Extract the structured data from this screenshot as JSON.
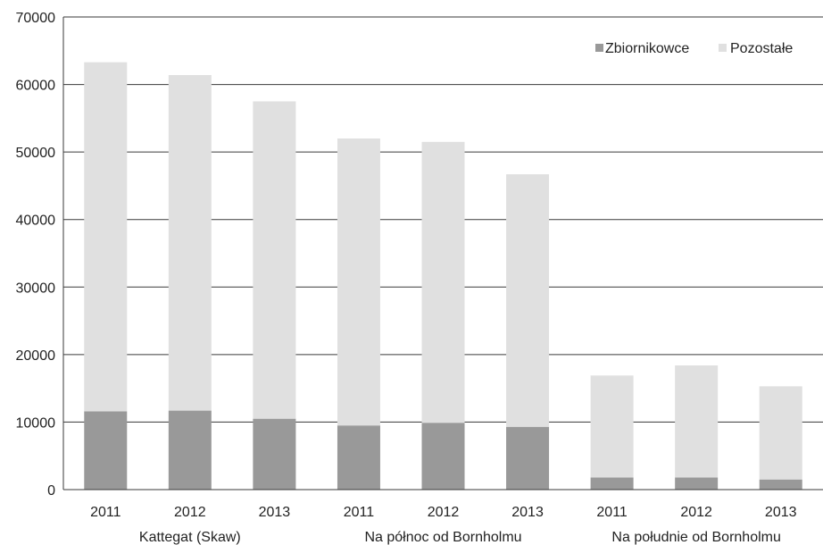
{
  "chart_data": {
    "type": "bar",
    "stacked": true,
    "groups": [
      {
        "label": "Kattegat (Skaw)",
        "categories": [
          "2011",
          "2012",
          "2013"
        ]
      },
      {
        "label": "Na północ od Bornholmu",
        "categories": [
          "2011",
          "2012",
          "2013"
        ]
      },
      {
        "label": "Na południe od Bornholmu",
        "categories": [
          "2011",
          "2012",
          "2013"
        ]
      }
    ],
    "categories": [
      "2011",
      "2012",
      "2013",
      "2011",
      "2012",
      "2013",
      "2011",
      "2012",
      "2013"
    ],
    "series": [
      {
        "name": "Zbiornikowce",
        "color": "#999999",
        "values": [
          11600,
          11700,
          10500,
          9500,
          9900,
          9300,
          1800,
          1800,
          1500
        ]
      },
      {
        "name": "Pozostałe",
        "color": "#e0e0e0",
        "values": [
          51700,
          49700,
          47000,
          42500,
          41600,
          37400,
          15100,
          16600,
          13800
        ]
      }
    ],
    "totals": [
      63300,
      61400,
      57500,
      52000,
      51500,
      46700,
      16900,
      18400,
      15300
    ],
    "ylim": [
      0,
      70000
    ],
    "yticks": [
      "0",
      "10000",
      "20000",
      "30000",
      "40000",
      "50000",
      "60000",
      "70000"
    ],
    "grid": true,
    "legend_position": "top-right",
    "title": "",
    "xlabel": "",
    "ylabel": ""
  }
}
